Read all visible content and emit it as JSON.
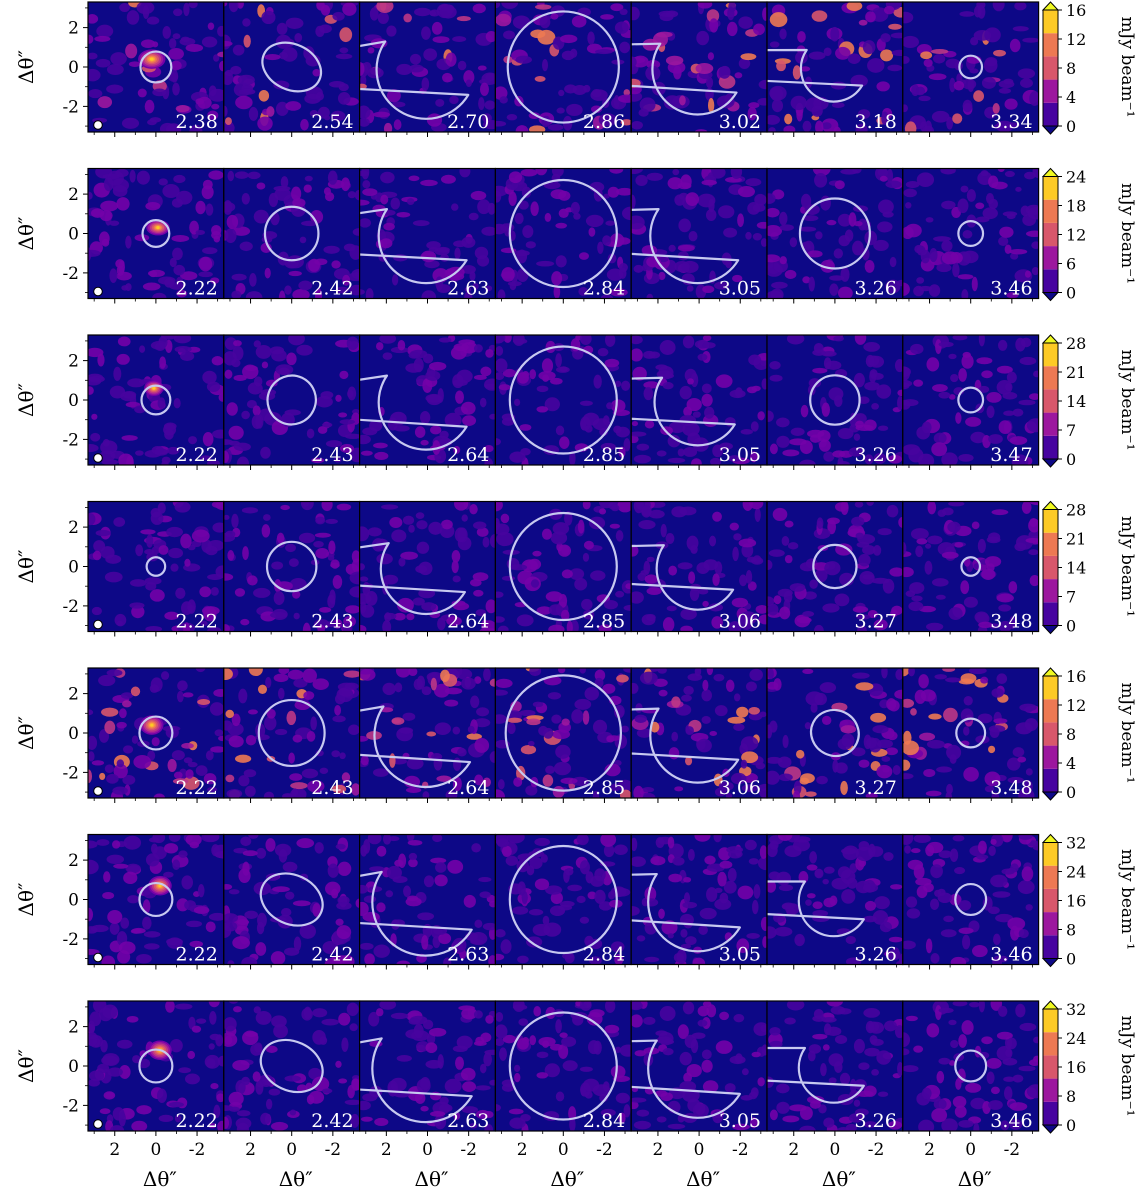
{
  "chart_data": {
    "type": "heatmap",
    "description_kind": "channel-map grid",
    "colormap": "plasma",
    "contour_color": "#c7c9f0",
    "x_axis": {
      "label": "Δθ″",
      "ticks": [
        2,
        0,
        -2
      ],
      "tick_labels": [
        "2",
        "0",
        "-2"
      ],
      "range": [
        3.3,
        -3.3
      ]
    },
    "y_axis": {
      "label": "Δθ″",
      "ticks": [
        2,
        0,
        -2
      ],
      "tick_labels": [
        "2",
        "0",
        "-2"
      ],
      "range": [
        -3.3,
        3.3
      ]
    },
    "colorbar_label": "mJy beam⁻¹",
    "beam_marker": true,
    "rows": [
      {
        "velocities": [
          "2.38",
          "2.54",
          "2.70",
          "2.86",
          "3.02",
          "3.18",
          "3.34"
        ],
        "colorbar_ticks": [
          "0",
          "4",
          "8",
          "12",
          "16"
        ],
        "vmax": 16,
        "panels": [
          {
            "shape": "circle",
            "r": 0.75,
            "blobs": [
              [
                0.2,
                0.4,
                0.7,
                0.5
              ]
            ]
          },
          {
            "shape": "ellipse",
            "rx": 1.9,
            "ry": 1.3,
            "blobs": [
              [
                0.2,
                1.3,
                1.0,
                0.9
              ],
              [
                -0.5,
                0.8,
                0.8,
                0.7
              ]
            ]
          },
          {
            "shape": "wedge",
            "r": 2.4,
            "notch": [
              -0.8,
              -0.6
            ],
            "blobs": [
              [
                1.0,
                0.9,
                0.8,
                0.8
              ],
              [
                -1.0,
                -0.2,
                1.0,
                0.9
              ]
            ]
          },
          {
            "shape": "ring",
            "r": 2.7,
            "notch": [
              -0.8,
              0.6
            ],
            "blobs": [
              [
                1.0,
                0.5,
                0.8,
                0.7
              ],
              [
                -0.6,
                -0.2,
                0.8,
                0.6
              ]
            ]
          },
          {
            "shape": "wedge",
            "r": 2.2,
            "notch": [
              0.4,
              0.6
            ],
            "blobs": [
              [
                1.3,
                0.0,
                0.8,
                0.7
              ],
              [
                -0.4,
                -0.3,
                0.9,
                0.6
              ]
            ]
          },
          {
            "shape": "wedge",
            "r": 1.6,
            "notch": [
              -0.2,
              0.8
            ],
            "blobs": [
              [
                0.5,
                -0.3,
                0.8,
                0.8
              ]
            ]
          },
          {
            "shape": "circle",
            "r": 0.55,
            "blobs": [
              [
                0.2,
                -0.5,
                0.4,
                0.6
              ]
            ]
          }
        ]
      },
      {
        "velocities": [
          "2.22",
          "2.42",
          "2.63",
          "2.84",
          "3.05",
          "3.26",
          "3.46"
        ],
        "colorbar_ticks": [
          "0",
          "6",
          "12",
          "18",
          "24"
        ],
        "vmax": 24,
        "panels": [
          {
            "shape": "circle",
            "r": 0.65,
            "blobs": [
              [
                -0.1,
                0.3,
                0.6,
                0.4
              ]
            ]
          },
          {
            "shape": "circle",
            "r": 1.3,
            "blobs": [
              [
                0.3,
                1.0,
                1.0,
                0.9
              ],
              [
                -0.8,
                0.6,
                0.8,
                0.7
              ]
            ]
          },
          {
            "shape": "wedge",
            "r": 2.3,
            "notch": [
              0.2,
              -0.5
            ],
            "blobs": [
              [
                1.5,
                1.0,
                0.9,
                0.8
              ],
              [
                0.0,
                0.7,
                0.9,
                0.7
              ],
              [
                -1.3,
                -0.6,
                0.9,
                0.7
              ]
            ]
          },
          {
            "shape": "ring",
            "r": 2.6,
            "notch": [
              -0.6,
              0.6
            ],
            "blobs": [
              [
                0.8,
                0.6,
                0.9,
                0.8
              ],
              [
                -0.6,
                -0.6,
                0.9,
                0.8
              ]
            ]
          },
          {
            "shape": "wedge",
            "r": 2.3,
            "notch": [
              1.6,
              0.5
            ],
            "blobs": [
              [
                0.8,
                0.2,
                1.0,
                0.9
              ],
              [
                -0.4,
                -0.8,
                0.9,
                0.8
              ]
            ]
          },
          {
            "shape": "circle",
            "r": 1.7,
            "blobs": [
              [
                0.0,
                -0.5,
                0.8,
                0.7
              ]
            ]
          },
          {
            "shape": "circle",
            "r": 0.6,
            "blobs": [
              [
                0.0,
                -0.2,
                0.4,
                0.5
              ]
            ]
          }
        ]
      },
      {
        "velocities": [
          "2.22",
          "2.43",
          "2.64",
          "2.85",
          "3.05",
          "3.26",
          "3.47"
        ],
        "colorbar_ticks": [
          "0",
          "7",
          "14",
          "21",
          "28"
        ],
        "vmax": 28,
        "panels": [
          {
            "shape": "circle",
            "r": 0.7,
            "blobs": [
              [
                0.1,
                0.6,
                0.5,
                0.4
              ]
            ]
          },
          {
            "shape": "ellipse",
            "rx": 1.5,
            "ry": 1.4,
            "blobs": [
              [
                0.6,
                1.0,
                0.8,
                0.8
              ]
            ]
          },
          {
            "shape": "wedge",
            "r": 2.3,
            "notch": [
              -0.9,
              -0.4
            ],
            "blobs": [
              [
                1.1,
                0.6,
                0.9,
                0.8
              ],
              [
                -0.6,
                0.3,
                0.8,
                0.7
              ]
            ]
          },
          {
            "shape": "ring",
            "r": 2.6,
            "notch": null,
            "blobs": [
              [
                0.2,
                -0.3,
                0.8,
                0.6
              ],
              [
                -0.5,
                -0.8,
                0.7,
                0.5
              ]
            ]
          },
          {
            "shape": "wedge",
            "r": 2.1,
            "notch": [
              0.5,
              0.4
            ],
            "blobs": [
              [
                0.6,
                -0.6,
                1.0,
                0.9
              ],
              [
                -0.5,
                -1.0,
                0.8,
                0.7
              ]
            ]
          },
          {
            "shape": "circle",
            "r": 1.2,
            "blobs": [
              [
                0.0,
                -0.3,
                0.8,
                0.7
              ]
            ]
          },
          {
            "shape": "circle",
            "r": 0.6,
            "blobs": []
          }
        ]
      },
      {
        "velocities": [
          "2.22",
          "2.43",
          "2.64",
          "2.85",
          "3.06",
          "3.27",
          "3.48"
        ],
        "colorbar_ticks": [
          "0",
          "7",
          "14",
          "21",
          "28"
        ],
        "vmax": 28,
        "panels": [
          {
            "shape": "circle",
            "r": 0.45,
            "blobs": []
          },
          {
            "shape": "circle",
            "r": 1.2,
            "blobs": [
              [
                0.4,
                0.8,
                0.7,
                0.6
              ]
            ]
          },
          {
            "shape": "wedge",
            "r": 2.2,
            "notch": [
              -0.9,
              -0.4
            ],
            "blobs": [
              [
                1.0,
                0.9,
                0.9,
                0.8
              ],
              [
                -0.4,
                0.2,
                0.7,
                0.6
              ]
            ]
          },
          {
            "shape": "ring",
            "r": 2.6,
            "notch": [
              -0.7,
              0.6
            ],
            "blobs": [
              [
                0.5,
                0.6,
                0.8,
                0.6
              ],
              [
                -0.5,
                -1.0,
                0.7,
                0.6
              ]
            ]
          },
          {
            "shape": "wedge",
            "r": 2.0,
            "notch": [
              0.5,
              0.5
            ],
            "blobs": [
              [
                0.9,
                0.0,
                0.8,
                0.6
              ],
              [
                -0.4,
                -0.5,
                0.8,
                0.5
              ]
            ]
          },
          {
            "shape": "circle",
            "r": 1.05,
            "blobs": [
              [
                0.0,
                -0.7,
                0.6,
                0.5
              ]
            ]
          },
          {
            "shape": "circle",
            "r": 0.45,
            "blobs": []
          }
        ]
      },
      {
        "velocities": [
          "2.22",
          "2.43",
          "2.64",
          "2.85",
          "3.06",
          "3.27",
          "3.48"
        ],
        "colorbar_ticks": [
          "0",
          "4",
          "8",
          "12",
          "16"
        ],
        "vmax": 16,
        "panels": [
          {
            "shape": "circle",
            "r": 0.8,
            "blobs": [
              [
                0.2,
                0.4,
                0.6,
                0.5
              ]
            ]
          },
          {
            "shape": "circle",
            "r": 1.6,
            "blobs": [
              [
                0.0,
                0.6,
                0.7,
                0.5
              ]
            ]
          },
          {
            "shape": "wedge",
            "r": 2.5,
            "notch": [
              -0.9,
              -0.5
            ],
            "blobs": [
              [
                0.4,
                0.3,
                0.9,
                0.5
              ]
            ]
          },
          {
            "shape": "ring",
            "r": 2.8,
            "notch": null,
            "blobs": [
              [
                -0.7,
                -0.3,
                0.6,
                0.5
              ]
            ]
          },
          {
            "shape": "wedge",
            "r": 2.3,
            "notch": [
              0.5,
              0.4
            ],
            "blobs": [
              [
                0.6,
                -0.5,
                0.9,
                0.5
              ]
            ]
          },
          {
            "shape": "ellipse",
            "rx": 1.5,
            "ry": 1.3,
            "blobs": [
              [
                0.2,
                -0.7,
                0.9,
                0.6
              ]
            ]
          },
          {
            "shape": "circle",
            "r": 0.7,
            "blobs": [
              [
                0.0,
                -0.4,
                0.5,
                0.5
              ]
            ]
          }
        ]
      },
      {
        "velocities": [
          "2.22",
          "2.42",
          "2.63",
          "2.84",
          "3.05",
          "3.26",
          "3.46"
        ],
        "colorbar_ticks": [
          "0",
          "8",
          "16",
          "24",
          "32"
        ],
        "vmax": 32,
        "panels": [
          {
            "shape": "circle",
            "r": 0.8,
            "blobs": [
              [
                -0.2,
                0.7,
                0.6,
                0.5
              ]
            ]
          },
          {
            "shape": "ellipse",
            "rx": 2.0,
            "ry": 1.4,
            "blobs": [
              [
                0.2,
                0.9,
                1.0,
                0.9
              ],
              [
                -0.6,
                0.4,
                0.9,
                0.8
              ]
            ]
          },
          {
            "shape": "wedge",
            "r": 2.6,
            "notch": [
              -0.3,
              -0.6
            ],
            "blobs": [
              [
                0.9,
                1.0,
                0.9,
                0.8
              ],
              [
                -0.6,
                0.7,
                0.9,
                0.8
              ]
            ]
          },
          {
            "shape": "ring",
            "r": 2.6,
            "notch": null,
            "blobs": [
              [
                0.9,
                0.8,
                0.8,
                0.7
              ],
              [
                -0.7,
                -0.6,
                0.8,
                0.8
              ]
            ]
          },
          {
            "shape": "wedge",
            "r": 2.4,
            "notch": [
              1.6,
              0.6
            ],
            "blobs": [
              [
                1.1,
                -0.4,
                1.0,
                0.9
              ],
              [
                -0.2,
                -0.6,
                1.0,
                0.9
              ]
            ]
          },
          {
            "shape": "wedge",
            "r": 1.7,
            "notch": [
              -0.2,
              0.9
            ],
            "blobs": [
              [
                0.2,
                -0.4,
                0.8,
                0.8
              ]
            ]
          },
          {
            "shape": "circle",
            "r": 0.75,
            "blobs": [
              [
                0.2,
                -0.3,
                0.6,
                0.5
              ]
            ]
          }
        ]
      },
      {
        "velocities": [
          "2.22",
          "2.42",
          "2.63",
          "2.84",
          "3.05",
          "3.26",
          "3.46"
        ],
        "colorbar_ticks": [
          "0",
          "8",
          "16",
          "24",
          "32"
        ],
        "vmax": 32,
        "panels": [
          {
            "shape": "circle",
            "r": 0.8,
            "blobs": [
              [
                -0.2,
                0.8,
                0.6,
                0.5
              ]
            ]
          },
          {
            "shape": "ellipse",
            "rx": 2.0,
            "ry": 1.4,
            "blobs": [
              [
                0.2,
                0.9,
                1.0,
                0.9
              ],
              [
                -0.6,
                0.4,
                0.9,
                0.8
              ]
            ]
          },
          {
            "shape": "wedge",
            "r": 2.6,
            "notch": [
              -0.3,
              -0.6
            ],
            "blobs": [
              [
                0.9,
                1.0,
                0.9,
                0.8
              ],
              [
                -0.6,
                0.4,
                0.9,
                0.8
              ]
            ]
          },
          {
            "shape": "ring",
            "r": 2.6,
            "notch": null,
            "blobs": [
              [
                0.9,
                0.6,
                0.8,
                0.8
              ],
              [
                -0.7,
                -0.4,
                0.8,
                0.8
              ]
            ]
          },
          {
            "shape": "wedge",
            "r": 2.4,
            "notch": [
              1.6,
              0.6
            ],
            "blobs": [
              [
                1.2,
                -0.6,
                1.0,
                1.0
              ],
              [
                -0.1,
                -0.7,
                1.0,
                0.9
              ]
            ]
          },
          {
            "shape": "wedge",
            "r": 1.7,
            "notch": [
              -0.2,
              0.9
            ],
            "blobs": [
              [
                0.3,
                -0.5,
                0.8,
                0.8
              ]
            ]
          },
          {
            "shape": "circle",
            "r": 0.75,
            "blobs": [
              [
                0.2,
                -0.4,
                0.6,
                0.6
              ]
            ]
          }
        ]
      }
    ]
  }
}
